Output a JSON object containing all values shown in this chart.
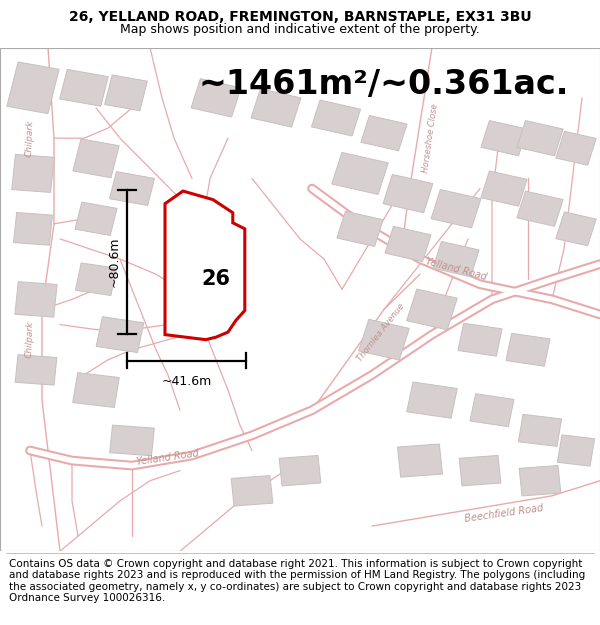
{
  "title_line1": "26, YELLAND ROAD, FREMINGTON, BARNSTAPLE, EX31 3BU",
  "title_line2": "Map shows position and indicative extent of the property.",
  "area_label": "~1461m²/~0.361ac.",
  "width_label": "~41.6m",
  "height_label": "~80.6m",
  "plot_number": "26",
  "footer_text": "Contains OS data © Crown copyright and database right 2021. This information is subject to Crown copyright and database rights 2023 and is reproduced with the permission of HM Land Registry. The polygons (including the associated geometry, namely x, y co-ordinates) are subject to Crown copyright and database rights 2023 Ordnance Survey 100026316.",
  "map_bg": "#ffffff",
  "road_line_color": "#e8aaaa",
  "road_outline_color": "#d49090",
  "building_fill": "#d8d0d0",
  "building_edge": "#c8c0c0",
  "plot_outline_color": "#cc0000",
  "plot_fill_color": "#ffffff",
  "title_fontsize": 10,
  "subtitle_fontsize": 9,
  "area_fontsize": 24,
  "footer_fontsize": 7.5,
  "road_label_color": "#c09090",
  "dim_color": "#000000"
}
